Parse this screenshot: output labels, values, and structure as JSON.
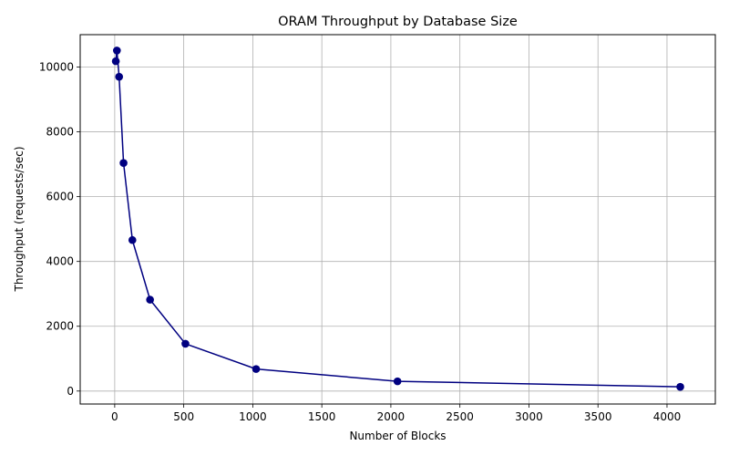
{
  "chart_data": {
    "type": "line",
    "title": "ORAM Throughput by Database Size",
    "xlabel": "Number of Blocks",
    "ylabel": "Throughput (requests/sec)",
    "xlim": [
      -250,
      4350
    ],
    "ylim": [
      -400,
      11000
    ],
    "xticks": [
      0,
      500,
      1000,
      1500,
      2000,
      2500,
      3000,
      3500,
      4000
    ],
    "yticks": [
      0,
      2000,
      4000,
      6000,
      8000,
      10000
    ],
    "grid": true,
    "series": [
      {
        "color": "#000080",
        "marker": "circle",
        "points": [
          {
            "x": 8,
            "y": 10180
          },
          {
            "x": 16,
            "y": 10510
          },
          {
            "x": 32,
            "y": 9700
          },
          {
            "x": 64,
            "y": 7040
          },
          {
            "x": 128,
            "y": 4660
          },
          {
            "x": 256,
            "y": 2820
          },
          {
            "x": 512,
            "y": 1460
          },
          {
            "x": 1024,
            "y": 680
          },
          {
            "x": 2048,
            "y": 300
          },
          {
            "x": 4096,
            "y": 130
          }
        ]
      }
    ]
  }
}
